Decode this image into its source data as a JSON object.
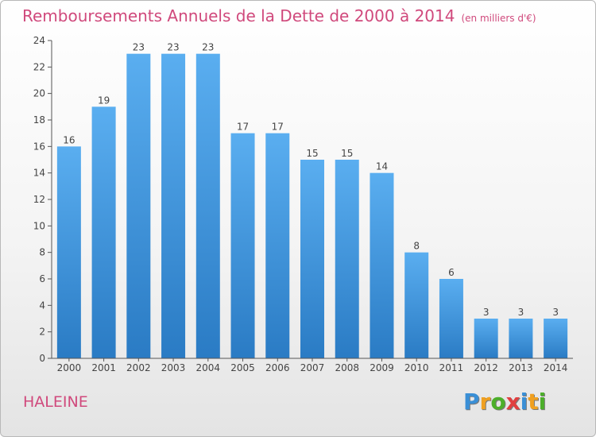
{
  "chart_data": {
    "type": "bar",
    "title": "Remboursements Annuels de la Dette de 2000 à 2014",
    "unit": "(en milliers d'€)",
    "categories": [
      "2000",
      "2001",
      "2002",
      "2003",
      "2004",
      "2005",
      "2006",
      "2007",
      "2008",
      "2009",
      "2010",
      "2011",
      "2012",
      "2013",
      "2014"
    ],
    "values": [
      16,
      19,
      23,
      23,
      23,
      17,
      17,
      15,
      15,
      14,
      8,
      6,
      3,
      3,
      3
    ],
    "ylim": [
      0,
      24
    ],
    "yticks": [
      0,
      2,
      4,
      6,
      8,
      10,
      12,
      14,
      16,
      18,
      20,
      22,
      24
    ],
    "xlabel": "",
    "ylabel": "",
    "grid": false,
    "bar_color_top": "#5aaef0",
    "bar_color_bottom": "#2a7bc4"
  },
  "commune": "HALEINE",
  "logo": {
    "letters": [
      {
        "ch": "P",
        "color": "#3a8fd6"
      },
      {
        "ch": "r",
        "color": "#f0a020"
      },
      {
        "ch": "o",
        "color": "#4caf2a"
      },
      {
        "ch": "x",
        "color": "#e04040"
      },
      {
        "ch": "i",
        "color": "#3a8fd6"
      },
      {
        "ch": "t",
        "color": "#f0a020"
      },
      {
        "ch": "i",
        "color": "#4caf2a"
      }
    ]
  }
}
